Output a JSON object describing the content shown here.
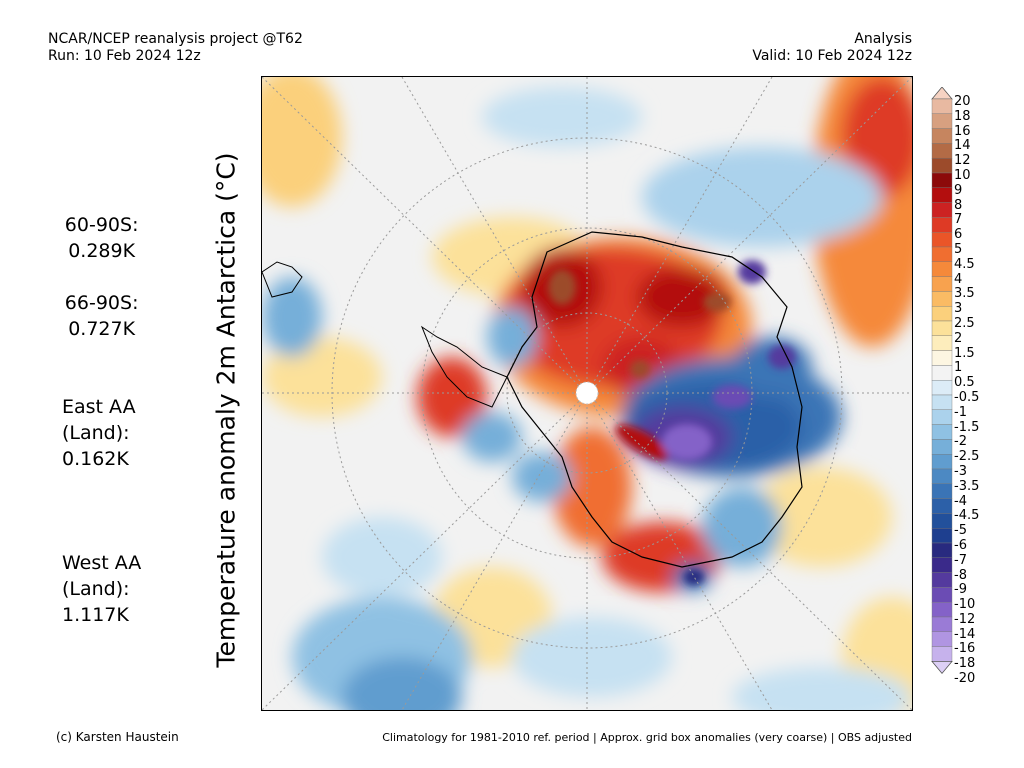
{
  "header": {
    "source": "NCAR/NCEP reanalysis project @T62",
    "run": "Run: 10 Feb 2024 12z",
    "type": "Analysis",
    "valid": "Valid: 10 Feb 2024 12z"
  },
  "axis_title": "Temperature anomaly 2m Antarctica (°C)",
  "stats": [
    {
      "label": "60-90S:",
      "value": "0.289K"
    },
    {
      "label": "66-90S:",
      "value": "0.727K"
    },
    {
      "label": "East AA\n(Land):",
      "value": "0.162K"
    },
    {
      "label": "West AA\n(Land):",
      "value": "1.117K"
    }
  ],
  "footer": {
    "credit": "(c) Karsten Haustein",
    "note": "Climatology for 1981-2010 ref. period | Approx. grid box anomalies (very coarse) | OBS adjusted"
  },
  "colorbar": {
    "labels": [
      "20",
      "18",
      "16",
      "14",
      "12",
      "10",
      "9",
      "8",
      "7",
      "6",
      "5",
      "4.5",
      "4",
      "3.5",
      "3",
      "2.5",
      "2",
      "1.5",
      "1",
      "0.5",
      "-0.5",
      "-1",
      "-1.5",
      "-2",
      "-2.5",
      "-3",
      "-3.5",
      "-4",
      "-4.5",
      "-5",
      "-6",
      "-7",
      "-8",
      "-9",
      "-10",
      "-12",
      "-14",
      "-16",
      "-18",
      "-20"
    ],
    "colors": [
      "#f6d3c3",
      "#e8b9a1",
      "#d7a080",
      "#c6855f",
      "#b36b46",
      "#9c4b2b",
      "#8c0a0a",
      "#b30e0e",
      "#cc2222",
      "#de3a25",
      "#ea5528",
      "#f06e30",
      "#f5893a",
      "#f8a24e",
      "#fabb64",
      "#fbd07c",
      "#fce19a",
      "#fdedbc",
      "#fdf6e2",
      "#f3f3f3",
      "#dcecf7",
      "#c6e1f2",
      "#abd2ec",
      "#8fc1e3",
      "#76afd9",
      "#609dcf",
      "#4c89c3",
      "#3a74b6",
      "#2c60a8",
      "#22509b",
      "#1e3f8f",
      "#282a7f",
      "#3a2a8a",
      "#543a9e",
      "#6b4cb4",
      "#8462c8",
      "#9a7bd6",
      "#b095e2",
      "#c6b2ec",
      "#dccff5"
    ]
  }
}
